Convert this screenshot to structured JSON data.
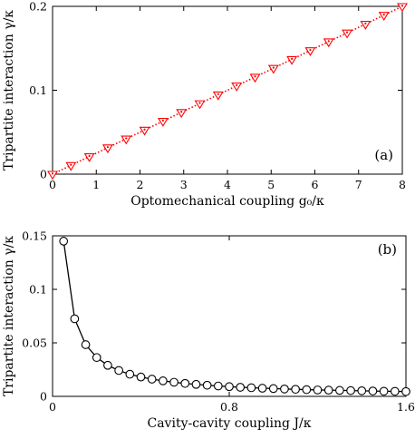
{
  "chart_data": [
    {
      "type": "line",
      "panel_label": "(a)",
      "xlabel": "Optomechanical coupling g₀/κ",
      "ylabel": "Tripartite interaction γ/κ",
      "xlim": [
        0,
        8
      ],
      "ylim": [
        0,
        0.2
      ],
      "xticks": [
        "0",
        "1",
        "2",
        "3",
        "4",
        "5",
        "6",
        "7",
        "8"
      ],
      "yticks": [
        "0",
        "0.1",
        "0.2"
      ],
      "grid": false,
      "series": [
        {
          "line_style": "dotted",
          "marker": "down-triangle",
          "color": "#ff0000",
          "x": [
            0,
            0.421,
            0.842,
            1.263,
            1.684,
            2.105,
            2.526,
            2.947,
            3.368,
            3.789,
            4.211,
            4.632,
            5.053,
            5.474,
            5.895,
            6.316,
            6.737,
            7.158,
            7.579,
            8.0
          ],
          "y": [
            0,
            0.0105,
            0.021,
            0.0316,
            0.0421,
            0.0526,
            0.0632,
            0.0737,
            0.0842,
            0.0947,
            0.1053,
            0.1158,
            0.1263,
            0.1368,
            0.1474,
            0.1579,
            0.1684,
            0.1789,
            0.1895,
            0.2
          ]
        }
      ]
    },
    {
      "type": "line",
      "panel_label": "(b)",
      "xlabel": "Cavity-cavity coupling J/κ",
      "ylabel": "Tripartite interaction γ/κ",
      "xlim": [
        0,
        1.6
      ],
      "ylim": [
        0,
        0.15
      ],
      "xticks": [
        "0",
        "0.8",
        "1.6"
      ],
      "yticks": [
        "0",
        "0.05",
        "0.1",
        "0.15"
      ],
      "grid": false,
      "series": [
        {
          "line_style": "solid",
          "marker": "circle",
          "color": "#000000",
          "x": [
            0.05,
            0.1,
            0.15,
            0.2,
            0.25,
            0.3,
            0.35,
            0.4,
            0.45,
            0.5,
            0.55,
            0.6,
            0.65,
            0.7,
            0.75,
            0.8,
            0.85,
            0.9,
            0.95,
            1.0,
            1.05,
            1.1,
            1.15,
            1.2,
            1.25,
            1.3,
            1.35,
            1.4,
            1.45,
            1.5,
            1.55,
            1.6
          ],
          "y": [
            0.145,
            0.0725,
            0.0483,
            0.0363,
            0.029,
            0.0242,
            0.0207,
            0.0181,
            0.0161,
            0.0145,
            0.0132,
            0.0121,
            0.0112,
            0.0104,
            0.0097,
            0.0091,
            0.0085,
            0.0081,
            0.0076,
            0.0073,
            0.0069,
            0.0066,
            0.0063,
            0.006,
            0.0058,
            0.0056,
            0.0054,
            0.0052,
            0.005,
            0.0048,
            0.0047,
            0.0045
          ]
        }
      ]
    }
  ]
}
